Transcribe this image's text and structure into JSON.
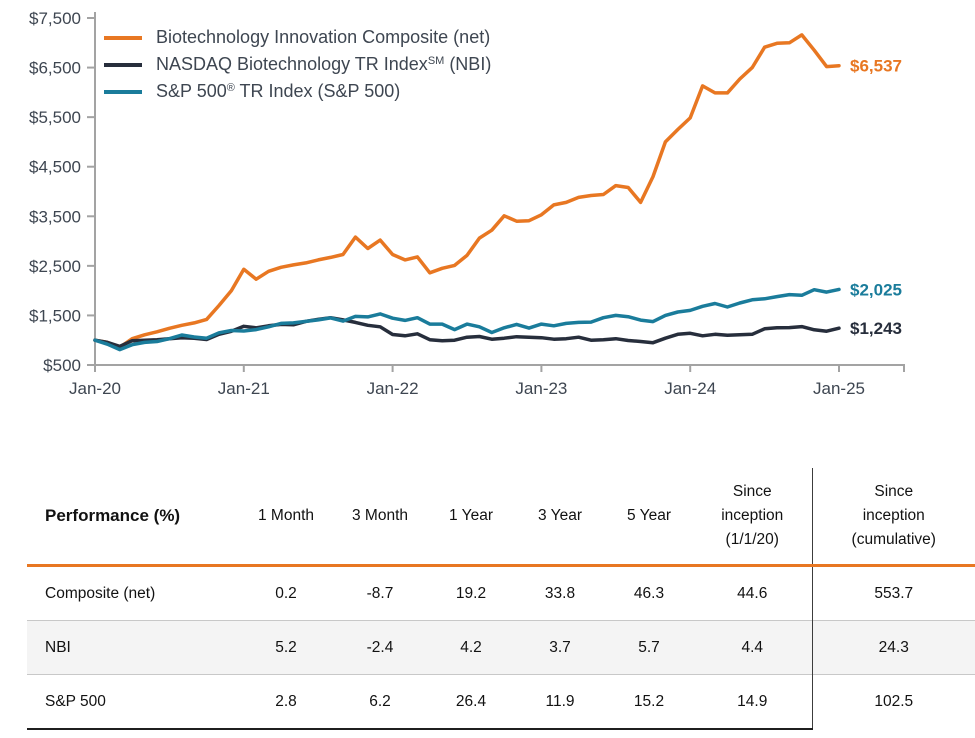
{
  "colors": {
    "composite": "#E87722",
    "nbi": "#272E3C",
    "sp500": "#1A7C9B",
    "axis_line": "#A3A3A3",
    "axis_text": "#3E4651",
    "header_rule": "#E87722",
    "row_stripe": "#F4F4F4"
  },
  "legend": {
    "items": [
      {
        "label": "Biotechnology Innovation Composite (net)",
        "sup": "",
        "suffix": "",
        "color": "#E87722"
      },
      {
        "label": "NASDAQ Biotechnology TR Index",
        "sup": "SM",
        "suffix": " (NBI)",
        "color": "#272E3C"
      },
      {
        "label": "S&P 500",
        "sup": "®",
        "suffix": " TR Index (S&P 500)",
        "color": "#1A7C9B"
      }
    ]
  },
  "chart_data": {
    "type": "line",
    "title": "",
    "xlabel": "",
    "ylabel": "",
    "grid": false,
    "legend_position": "top-left",
    "x_labels": [
      "Jan-20",
      "Jan-21",
      "Jan-22",
      "Jan-23",
      "Jan-24",
      "Jan-25"
    ],
    "x_tick_months": [
      0,
      12,
      24,
      36,
      48,
      60
    ],
    "ylim": [
      500,
      7500
    ],
    "y_ticks": [
      500,
      1500,
      2500,
      3500,
      4500,
      5500,
      6500,
      7500
    ],
    "y_tick_labels": [
      "$500",
      "$1,500",
      "$2,500",
      "$3,500",
      "$4,500",
      "$5,500",
      "$6,500",
      "$7,500"
    ],
    "series": [
      {
        "id": "composite",
        "name": "Biotechnology Innovation Composite (net)",
        "color": "#E87722",
        "end_label": "$6,537",
        "values": [
          1000,
          955,
          860,
          1030,
          1110,
          1170,
          1240,
          1300,
          1350,
          1420,
          1700,
          2000,
          2430,
          2230,
          2390,
          2470,
          2520,
          2560,
          2620,
          2670,
          2730,
          3080,
          2850,
          3020,
          2730,
          2620,
          2680,
          2360,
          2450,
          2510,
          2710,
          3060,
          3220,
          3510,
          3400,
          3410,
          3530,
          3730,
          3780,
          3880,
          3920,
          3940,
          4120,
          4080,
          3780,
          4300,
          5000,
          5250,
          5484,
          6130,
          5990,
          5990,
          6270,
          6500,
          6910,
          6990,
          7000,
          7160,
          6850,
          6520,
          6537
        ]
      },
      {
        "id": "nbi",
        "name": "NASDAQ Biotechnology TR Index (NBI)",
        "color": "#272E3C",
        "end_label": "$1,243",
        "values": [
          1000,
          955,
          875,
          990,
          1000,
          1010,
          1030,
          1050,
          1040,
          1015,
          1120,
          1180,
          1280,
          1250,
          1290,
          1320,
          1310,
          1380,
          1420,
          1455,
          1410,
          1360,
          1300,
          1270,
          1115,
          1090,
          1130,
          1010,
          990,
          1000,
          1060,
          1075,
          1020,
          1040,
          1070,
          1060,
          1050,
          1020,
          1030,
          1060,
          1000,
          1010,
          1030,
          995,
          975,
          950,
          1040,
          1120,
          1140,
          1090,
          1120,
          1100,
          1110,
          1120,
          1230,
          1250,
          1255,
          1274,
          1210,
          1182,
          1243
        ]
      },
      {
        "id": "sp500",
        "name": "S&P 500 TR Index (S&P 500)",
        "color": "#1A7C9B",
        "end_label": "$2,025",
        "values": [
          1000,
          920,
          810,
          910,
          955,
          975,
          1030,
          1105,
          1065,
          1040,
          1150,
          1195,
          1185,
          1215,
          1270,
          1340,
          1350,
          1380,
          1410,
          1450,
          1385,
          1480,
          1470,
          1530,
          1445,
          1400,
          1455,
          1325,
          1325,
          1215,
          1325,
          1270,
          1155,
          1250,
          1320,
          1245,
          1325,
          1290,
          1340,
          1360,
          1365,
          1455,
          1500,
          1475,
          1405,
          1375,
          1500,
          1570,
          1602,
          1685,
          1740,
          1670,
          1750,
          1815,
          1835,
          1880,
          1920,
          1907,
          2019,
          1970,
          2025
        ]
      }
    ]
  },
  "table": {
    "title_header": "Performance (%)",
    "columns": [
      "1 Month",
      "3 Month",
      "1 Year",
      "3 Year",
      "5 Year"
    ],
    "since_inception_header": {
      "l1": "Since",
      "l2": "inception",
      "l3": "(1/1/20)"
    },
    "since_cumulative_header": {
      "l1": "Since",
      "l2": "inception",
      "l3": "(cumulative)"
    },
    "rows": [
      {
        "label": "Composite (net)",
        "values": [
          "0.2",
          "-8.7",
          "19.2",
          "33.8",
          "46.3",
          "44.6",
          "553.7"
        ]
      },
      {
        "label": "NBI",
        "values": [
          "5.2",
          "-2.4",
          "4.2",
          "3.7",
          "5.7",
          "4.4",
          "24.3"
        ]
      },
      {
        "label": "S&P 500",
        "values": [
          "2.8",
          "6.2",
          "26.4",
          "11.9",
          "15.2",
          "14.9",
          "102.5"
        ]
      }
    ]
  }
}
